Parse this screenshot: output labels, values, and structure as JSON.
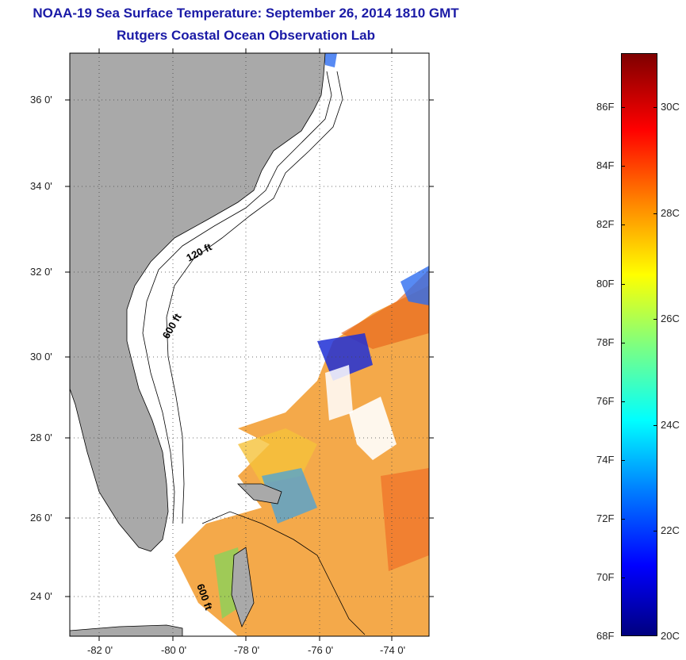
{
  "title": "NOAA-19 Sea Surface Temperature:  September 26, 2014 1810 GMT",
  "subtitle": "Rutgers Coastal Ocean Observation Lab",
  "map": {
    "lat_labels": [
      "36 0'",
      "34 0'",
      "32 0'",
      "30 0'",
      "28 0'",
      "26 0'",
      "24 0'"
    ],
    "lon_labels": [
      "-82 0'",
      "-80 0'",
      "-78 0'",
      "-76 0'",
      "-74 0'"
    ],
    "contour_labels": [
      "120 ft",
      "600 ft",
      "600 ft"
    ],
    "land_color": "#a9a9a9",
    "ocean_color": "#ffffff"
  },
  "colorbar": {
    "fahrenheit_labels": [
      "86F",
      "84F",
      "82F",
      "80F",
      "78F",
      "76F",
      "74F",
      "72F",
      "70F",
      "68F"
    ],
    "celsius_labels": [
      "30C",
      "28C",
      "26C",
      "24C",
      "22C",
      "20C"
    ],
    "colormap": "jet",
    "range_celsius": [
      20,
      31.5
    ]
  }
}
